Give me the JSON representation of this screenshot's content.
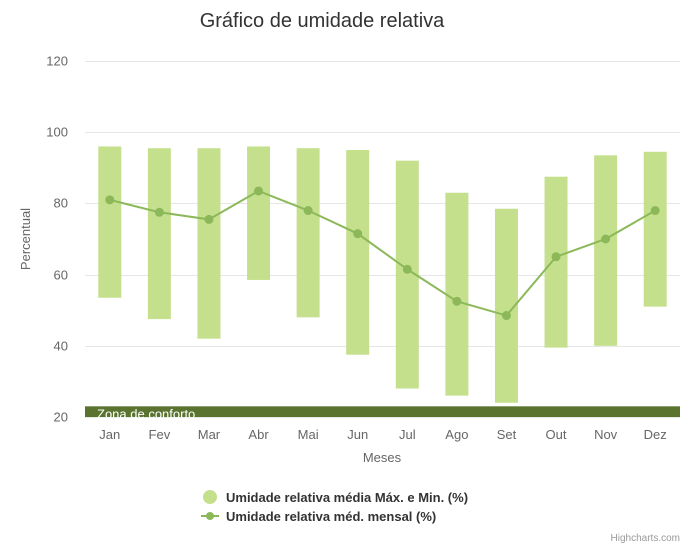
{
  "chart_data": {
    "type": "bar",
    "title": "Gráfico de umidade relativa",
    "xlabel": "Meses",
    "ylabel": "Percentual",
    "categories": [
      "Jan",
      "Fev",
      "Mar",
      "Abr",
      "Mai",
      "Jun",
      "Jul",
      "Ago",
      "Set",
      "Out",
      "Nov",
      "Dez"
    ],
    "ylim": [
      20,
      120
    ],
    "yticks": [
      "20",
      "40",
      "60",
      "80",
      "100",
      "120"
    ],
    "grid": true,
    "legend_position": "bottom-center",
    "series": [
      {
        "name": "Umidade relativa média Máx. e Min. (%)",
        "type": "columnrange",
        "color": "#c5e08d",
        "low": [
          53.5,
          47.5,
          42,
          58.5,
          48,
          37.5,
          28,
          26,
          24,
          39.5,
          40,
          51
        ],
        "high": [
          96,
          95.5,
          95.5,
          96,
          95.5,
          95,
          92,
          83,
          78.5,
          87.5,
          93.5,
          94.5
        ]
      },
      {
        "name": "Umidade relativa méd. mensal (%)",
        "type": "line",
        "color": "#8cb85a",
        "values": [
          81,
          77.5,
          75.5,
          83.5,
          78,
          71.5,
          61.5,
          52.5,
          48.5,
          65,
          70,
          78
        ]
      }
    ],
    "plot_band": {
      "label": "Zona de conforto",
      "from": 20,
      "to": 23,
      "color": "#5a7430"
    },
    "credits": "Highcharts.com"
  }
}
